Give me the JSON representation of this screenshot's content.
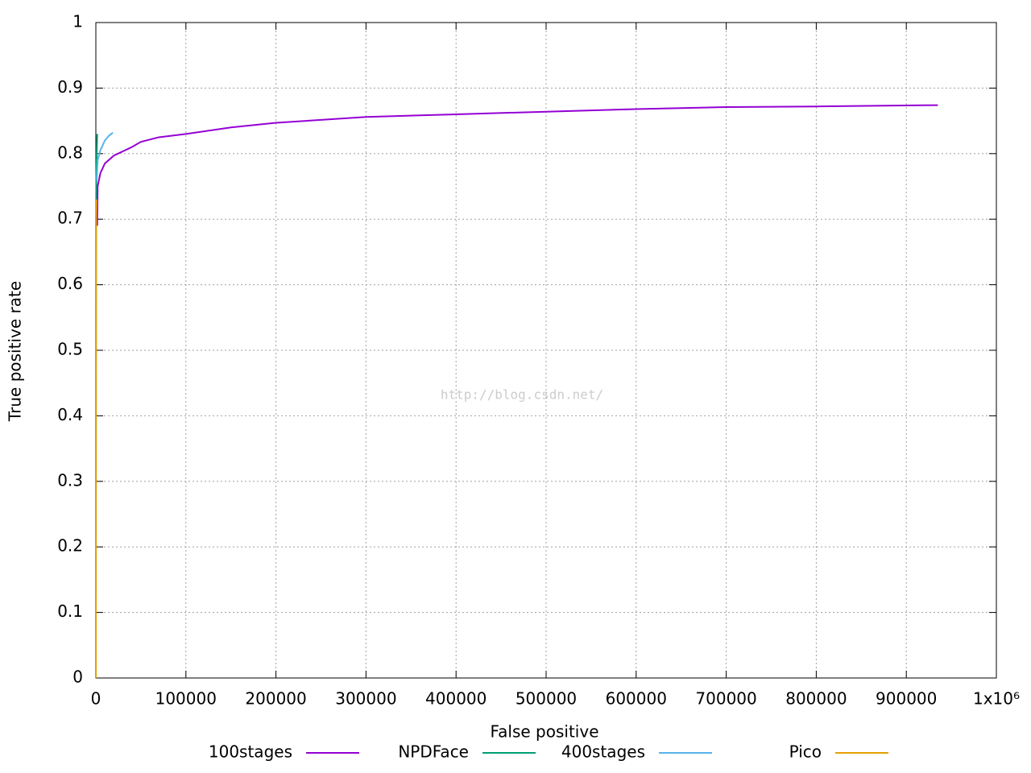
{
  "chart_data": {
    "type": "line",
    "xlabel": "False positive",
    "ylabel": "True positive rate",
    "watermark": "http://blog.csdn.net/",
    "xlim": [
      0,
      1000000
    ],
    "ylim": [
      0,
      1
    ],
    "xticks": [
      0,
      100000,
      200000,
      300000,
      400000,
      500000,
      600000,
      700000,
      800000,
      900000,
      {
        "value": 1000000,
        "label": "1x10⁶"
      }
    ],
    "yticks": [
      0,
      0.1,
      0.2,
      0.3,
      0.4,
      0.5,
      0.6,
      0.7,
      0.8,
      0.9,
      1
    ],
    "grid": true,
    "legend": "bottom",
    "series": [
      {
        "name": "100stages",
        "color": "#9400d3",
        "x": [
          1500,
          2000,
          5000,
          10000,
          20000,
          40000,
          50000,
          70000,
          100000,
          150000,
          200000,
          300000,
          400000,
          500000,
          600000,
          700000,
          800000,
          935000
        ],
        "values": [
          0.69,
          0.75,
          0.77,
          0.785,
          0.797,
          0.81,
          0.818,
          0.825,
          0.83,
          0.84,
          0.847,
          0.856,
          0.86,
          0.864,
          0.868,
          0.871,
          0.872,
          0.874
        ]
      },
      {
        "name": "NPDFace",
        "color": "#009e73",
        "x": [
          0,
          200,
          500,
          1000,
          1500
        ],
        "values": [
          0,
          0.7,
          0.76,
          0.8,
          0.83
        ]
      },
      {
        "name": "400stages",
        "color": "#56b4e9",
        "x": [
          1000,
          2000,
          5000,
          10000,
          15000,
          19000
        ],
        "values": [
          0.76,
          0.79,
          0.805,
          0.82,
          0.828,
          0.832
        ]
      },
      {
        "name": "Pico",
        "color": "#e69f00",
        "x": [
          0,
          100,
          300,
          800
        ],
        "values": [
          0,
          0.5,
          0.7,
          0.73
        ]
      }
    ]
  }
}
